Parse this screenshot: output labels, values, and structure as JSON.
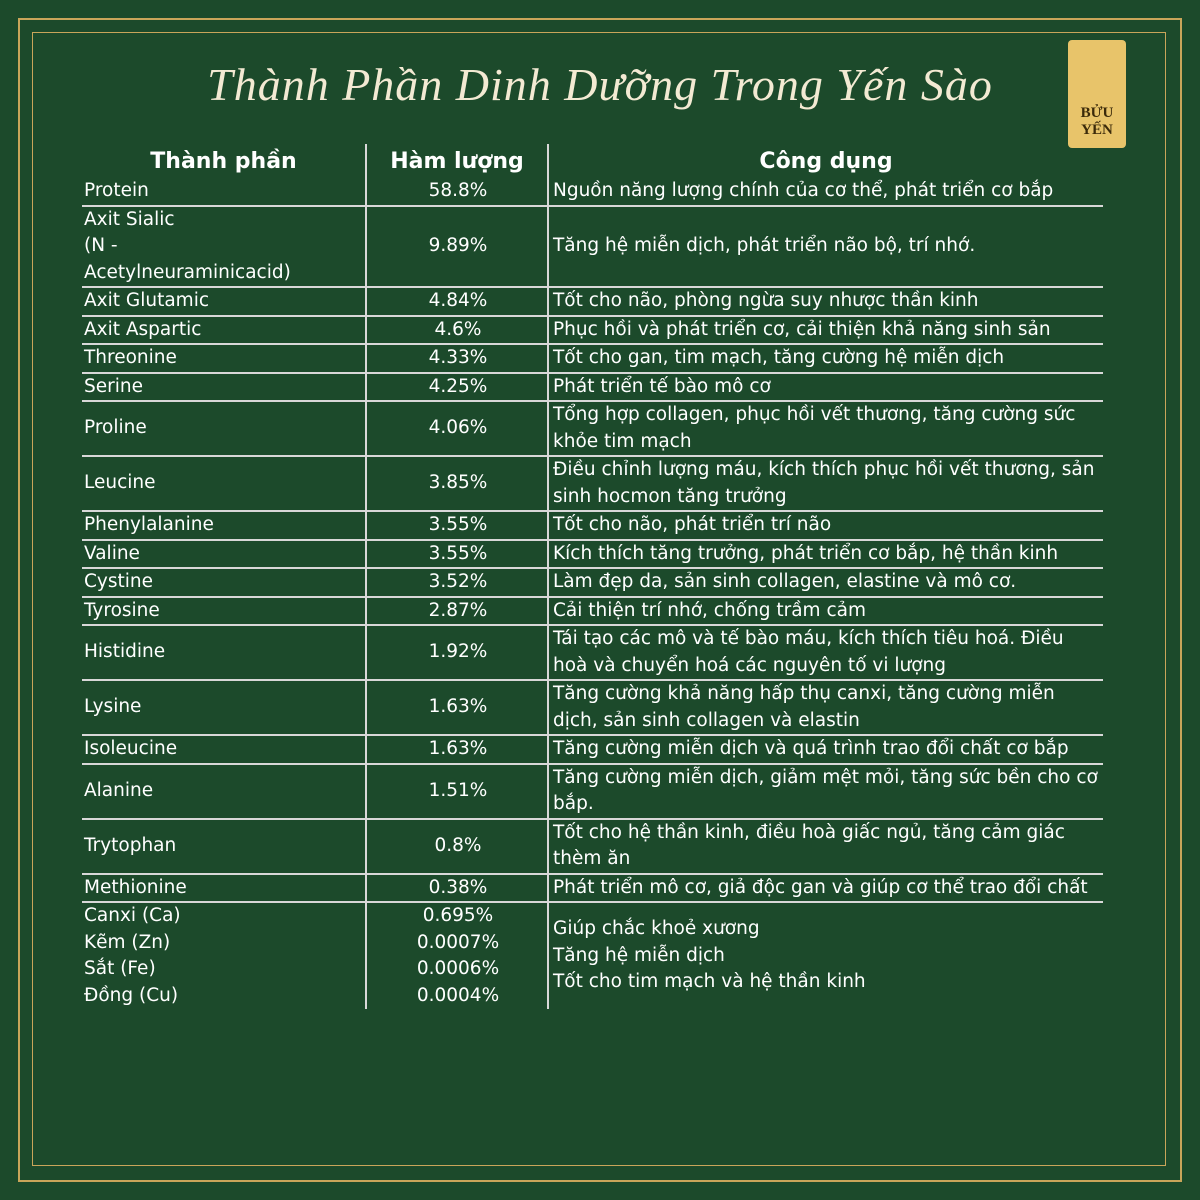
{
  "header": {
    "title": "Thành Phần Dinh Dưỡng Trong Yến Sào",
    "logo": "BỬU YẾN"
  },
  "table": {
    "columns": [
      "Thành phần",
      "Hàm lượng",
      "Công dụng"
    ],
    "rows": [
      [
        "Protein",
        "58.8%",
        "Nguồn năng lượng chính của cơ thể, phát triển cơ bắp"
      ],
      [
        "Axit Sialic\n(N -\nAcetylneuraminicacid)",
        "9.89%",
        "Tăng hệ miễn dịch, phát triển não bộ, trí nhớ."
      ],
      [
        "Axit Glutamic",
        "4.84%",
        "Tốt cho não, phòng ngừa suy nhược thần kinh"
      ],
      [
        "Axit Aspartic",
        "4.6%",
        "Phục hồi và phát triển cơ, cải thiện khả năng sinh sản"
      ],
      [
        "Threonine",
        "4.33%",
        "Tốt cho gan, tim mạch, tăng cường hệ miễn dịch"
      ],
      [
        "Serine",
        "4.25%",
        "Phát triển tế bào mô cơ"
      ],
      [
        "Proline",
        "4.06%",
        "Tổng hợp collagen, phục hồi vết thương, tăng cường sức khỏe tim mạch"
      ],
      [
        "Leucine",
        "3.85%",
        "Điều chỉnh lượng máu, kích thích phục hồi vết thương, sản sinh hocmon tăng trưởng"
      ],
      [
        "Phenylalanine",
        "3.55%",
        "Tốt cho não, phát triển trí não"
      ],
      [
        "Valine",
        "3.55%",
        "Kích thích tăng trưởng, phát triển cơ bắp, hệ thần kinh"
      ],
      [
        "Cystine",
        "3.52%",
        "Làm đẹp da, sản sinh collagen, elastine và mô cơ."
      ],
      [
        "Tyrosine",
        "2.87%",
        "Cải thiện trí nhớ, chống trầm cảm"
      ],
      [
        "Histidine",
        "1.92%",
        "Tái tạo các mô và tế bào máu, kích thích tiêu hoá. Điều hoà và chuyển hoá các nguyên tố vi lượng"
      ],
      [
        "Lysine",
        "1.63%",
        "Tăng cường khả năng hấp thụ canxi, tăng cường miễn dịch, sản sinh collagen và elastin"
      ],
      [
        "Isoleucine",
        "1.63%",
        "Tăng cường miễn dịch và quá trình trao đổi chất cơ bắp"
      ],
      [
        "Alanine",
        "1.51%",
        "Tăng cường miễn dịch, giảm mệt mỏi, tăng sức bền cho cơ bắp."
      ],
      [
        "Trytophan",
        "0.8%",
        "Tốt cho hệ thần kinh, điều hoà giấc ngủ, tăng cảm giác thèm ăn"
      ],
      [
        "Methionine",
        "0.38%",
        "Phát triển mô cơ, giả độc gan và giúp cơ thể trao đổi chất"
      ]
    ],
    "minerals": [
      [
        "Canxi (Ca)",
        "0.695%"
      ],
      [
        "Kẽm (Zn)",
        "0.0007%"
      ],
      [
        "Sắt (Fe)",
        "0.0006%"
      ],
      [
        "Đồng (Cu)",
        "0.0004%"
      ]
    ],
    "mineral_uses": [
      "Giúp chắc khoẻ xương",
      "Tăng hệ miễn dịch",
      "Tốt cho tim mạch và hệ thần kinh"
    ]
  }
}
